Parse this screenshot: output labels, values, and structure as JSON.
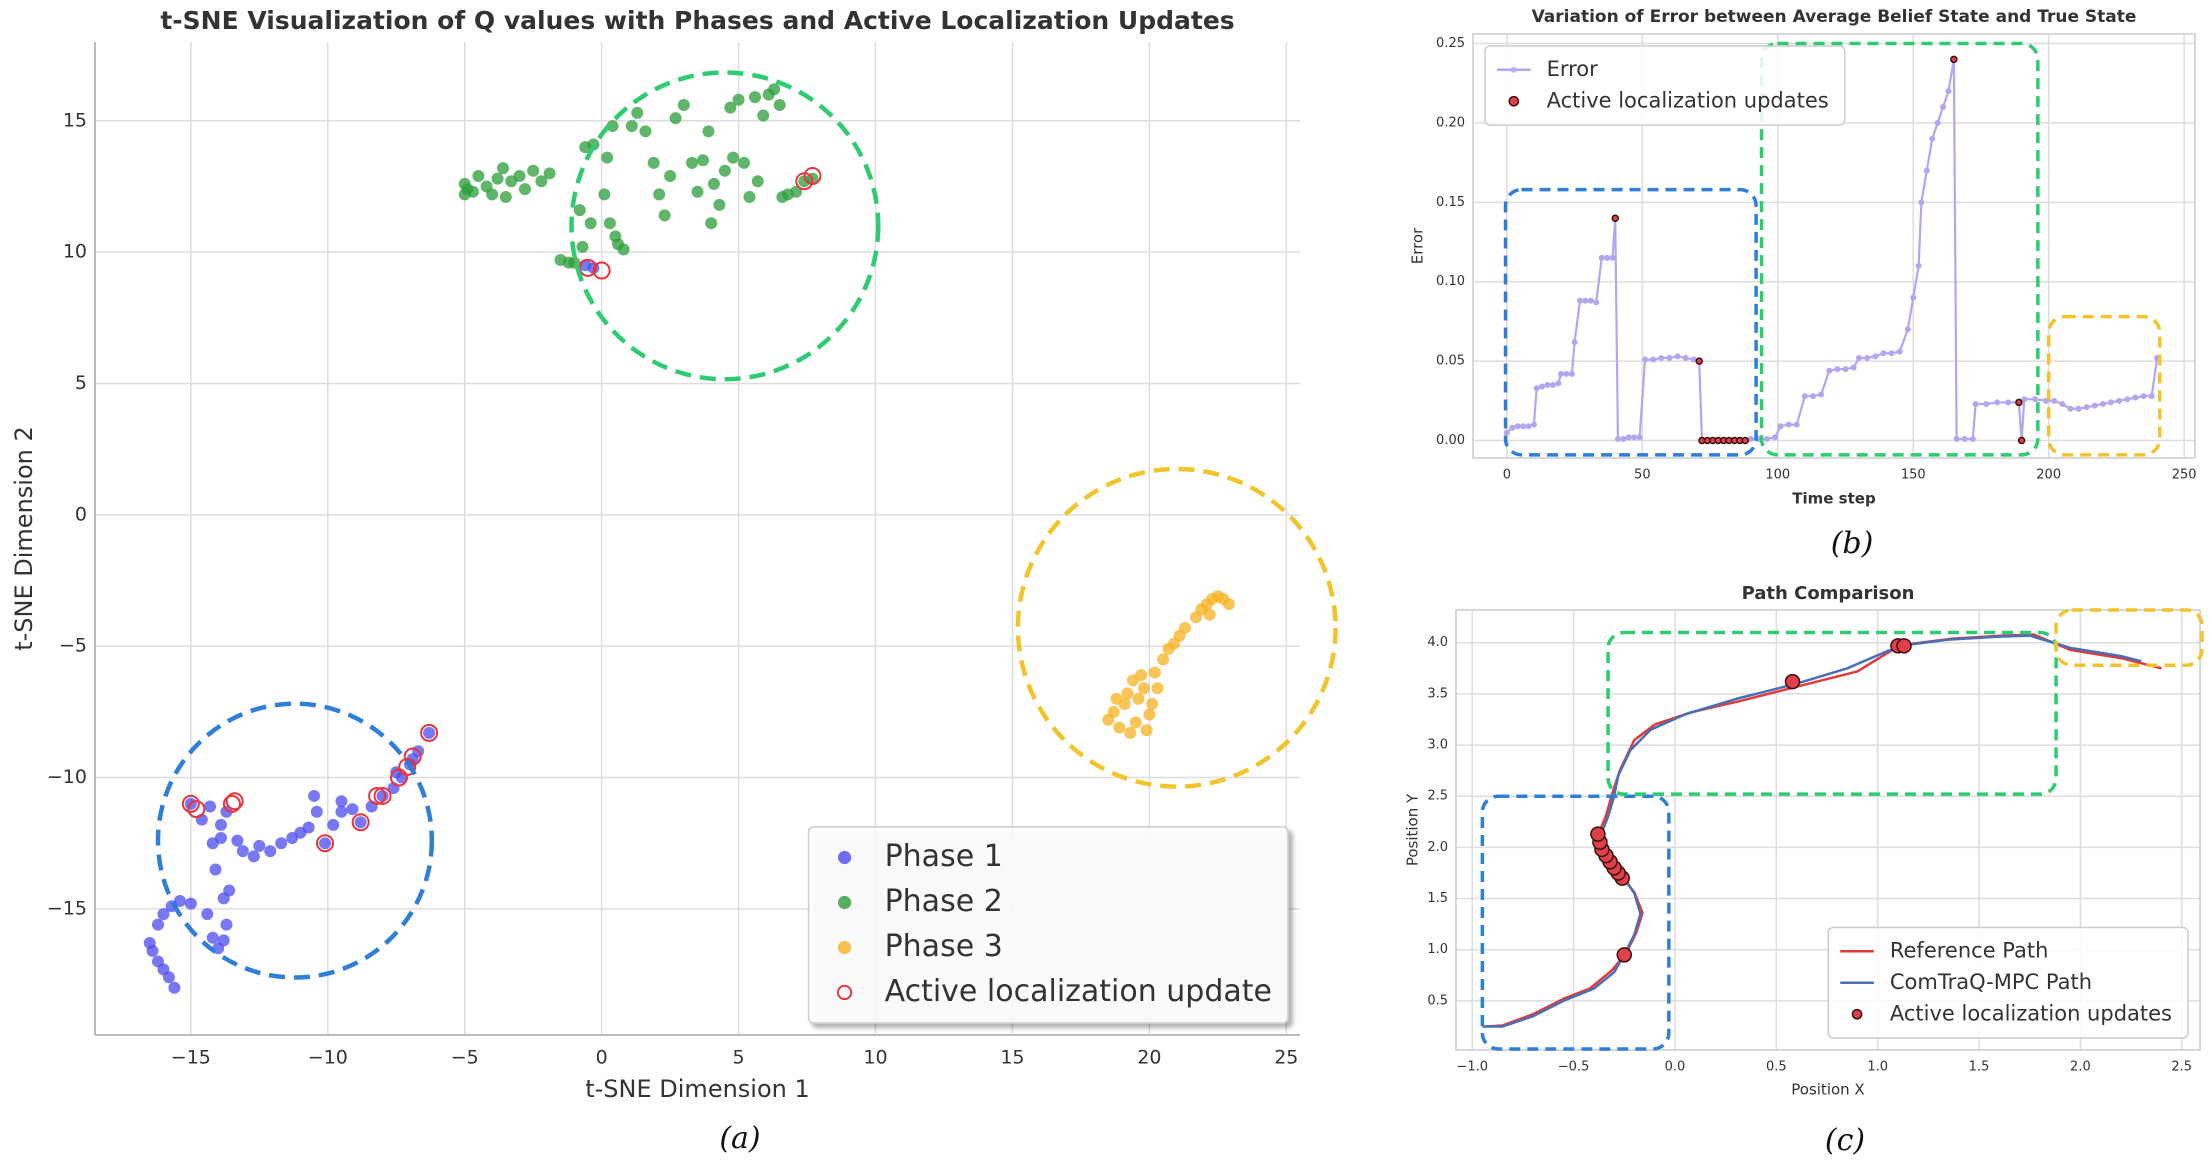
{
  "chart_data": [
    {
      "type": "scatter",
      "title": "t-SNE Visualization of Q values with Phases and Active Localization Updates",
      "x_label": "t-SNE Dimension 1",
      "y_label": "t-SNE Dimension 2",
      "caption": "(a)",
      "xlim": [
        -18.5,
        25.5
      ],
      "ylim": [
        -19.8,
        18
      ],
      "xticks": [
        {
          "value": -15,
          "label": "−15"
        },
        {
          "value": -10,
          "label": "−10"
        },
        {
          "value": -5,
          "label": "−5"
        },
        0,
        5,
        10,
        15,
        20,
        25
      ],
      "yticks": [
        {
          "value": -15,
          "label": "−15"
        },
        {
          "value": -10,
          "label": "−10"
        },
        {
          "value": -5,
          "label": "−5"
        },
        0,
        5,
        10,
        15
      ],
      "grid": true,
      "legend": "lower right",
      "series": [
        {
          "name": "Phase 1",
          "color": "#4b4bf0",
          "style": "markers",
          "x": [
            -16.5,
            -16.4,
            -16.2,
            -16,
            -15.8,
            -15.6,
            -16.2,
            -16,
            -15.7,
            -15.4,
            -15,
            -14.4,
            -14.2,
            -14,
            -13.8,
            -13.7,
            -13.6,
            -13.8,
            -14.1,
            -13.9,
            -14.2,
            -13.9,
            -13.7,
            -14.6,
            -15,
            -14.3,
            -13.1,
            -13.3,
            -12.7,
            -12.5,
            -12.1,
            -11.7,
            -11.3,
            -11,
            -10.7,
            -10.4,
            -10.1,
            -9.8,
            -9.5,
            -9.1,
            -8.8,
            -8.4,
            -8,
            -7.6,
            -7.3,
            -7,
            -6.7,
            -6.3,
            -10.5,
            -9.5,
            -7.5,
            -6.9,
            -0.6,
            -0.3
          ],
          "values": [
            -16.3,
            -16.6,
            -17,
            -17.3,
            -17.6,
            -18,
            -15.6,
            -15.2,
            -14.9,
            -14.7,
            -14.8,
            -15.2,
            -16.1,
            -16.5,
            -16.2,
            -15.6,
            -14.3,
            -14.6,
            -13.5,
            -12.3,
            -12.5,
            -11.8,
            -11.3,
            -11.6,
            -11,
            -11.1,
            -12.8,
            -12.4,
            -13,
            -12.6,
            -12.8,
            -12.5,
            -12.3,
            -12.1,
            -11.9,
            -11.3,
            -12.5,
            -11.8,
            -11.3,
            -11.2,
            -11.7,
            -11.1,
            -10.7,
            -10.4,
            -10,
            -9.5,
            -9,
            -8.3,
            -10.7,
            -10.9,
            -9.8,
            -9.3,
            9.5,
            9.4
          ]
        },
        {
          "name": "Phase 2",
          "color": "#2a9d3a",
          "style": "markers",
          "x": [
            -5,
            -5,
            -4.7,
            -4.5,
            -4.2,
            -4,
            -3.8,
            -3.6,
            -3.3,
            -3,
            -2.8,
            -2.5,
            -2.2,
            -1.9,
            -4.9,
            -3.5,
            -1.5,
            -1,
            -0.7,
            -0.4,
            -0.8,
            -0.6,
            -0.3,
            0.2,
            0.4,
            0.6,
            0.5,
            0.8,
            0.3,
            1.3,
            1.6,
            1.9,
            2.1,
            2.3,
            2.5,
            2.7,
            3,
            3.3,
            3.5,
            3.7,
            3.9,
            4.1,
            4.3,
            4.5,
            4.7,
            5,
            5.2,
            5.4,
            5.7,
            5.9,
            6.1,
            6.3,
            6.5,
            6.6,
            6.8,
            7.1,
            7.4,
            7.7,
            1.1,
            0.1,
            4.8,
            5.6,
            -1.2,
            4
          ],
          "values": [
            12.2,
            12.6,
            12.3,
            12.9,
            12.5,
            12.2,
            12.8,
            13.2,
            12.7,
            12.9,
            12.4,
            13.1,
            12.7,
            13,
            12.4,
            12.1,
            9.7,
            9.6,
            10.2,
            11.1,
            11.6,
            14,
            14.1,
            13.6,
            14.8,
            10.3,
            10.6,
            10.1,
            11.1,
            15.3,
            14.6,
            13.4,
            12.2,
            11.4,
            12.9,
            15.1,
            15.6,
            13.4,
            12.3,
            13.5,
            14.6,
            12.6,
            11.8,
            13.1,
            15.5,
            15.8,
            13.4,
            12.1,
            12.7,
            15.2,
            16,
            16.2,
            15.6,
            12.1,
            12.2,
            12.3,
            12.7,
            12.8,
            14.8,
            12.2,
            13.6,
            15.9,
            9.6,
            11.1
          ]
        },
        {
          "name": "Phase 3",
          "color": "#f5b21e",
          "style": "markers",
          "x": [
            18.5,
            18.7,
            18.9,
            19.1,
            19.3,
            19.5,
            19.2,
            19.6,
            19.8,
            20,
            19.4,
            19.7,
            20.1,
            20.3,
            20.2,
            20.5,
            20.7,
            20.9,
            21.1,
            21.3,
            21.9,
            22.1,
            22.3,
            22.5,
            22.7,
            22.9,
            22.2,
            18.8,
            19.9,
            21.7
          ],
          "values": [
            -7.8,
            -7.5,
            -8.1,
            -7.2,
            -8.3,
            -7.9,
            -6.8,
            -7,
            -6.6,
            -7.6,
            -6.3,
            -6.1,
            -7.2,
            -6.6,
            -6,
            -5.5,
            -5.1,
            -4.9,
            -4.6,
            -4.3,
            -3.6,
            -3.4,
            -3.2,
            -3.1,
            -3.2,
            -3.4,
            -3.8,
            -7,
            -8.2,
            -3.9
          ]
        },
        {
          "name": "Active localization update",
          "color": "none",
          "edgecolor": "#e8343e",
          "style": "markers",
          "x": [
            -15,
            -14.8,
            -13.5,
            -13.4,
            -10.1,
            -8.8,
            -8.2,
            -8,
            -7.4,
            -7.1,
            -6.9,
            -6.3,
            -0.5,
            0,
            7.4,
            7.7
          ],
          "values": [
            -11,
            -11.2,
            -11,
            -10.9,
            -12.5,
            -11.7,
            -10.7,
            -10.7,
            -10,
            -9.6,
            -9.2,
            -8.3,
            9.4,
            9.3,
            12.7,
            12.9
          ]
        }
      ]
    },
    {
      "type": "line",
      "title": "Variation of Error between Average Belief State and True State",
      "x_label": "Time step",
      "y_label": "Error",
      "caption": "(b)",
      "xlim": [
        -12.5,
        254
      ],
      "ylim": [
        -0.011,
        0.256
      ],
      "xticks": [
        0,
        50,
        100,
        150,
        200,
        250
      ],
      "yticks": [
        {
          "value": 0,
          "label": "0.00"
        },
        {
          "value": 0.05,
          "label": "0.05"
        },
        {
          "value": 0.1,
          "label": "0.10"
        },
        {
          "value": 0.15,
          "label": "0.15"
        },
        {
          "value": 0.2,
          "label": "0.20"
        },
        {
          "value": 0.25,
          "label": "0.25"
        }
      ],
      "grid": true,
      "legend": "upper left",
      "series": [
        {
          "name": "Error",
          "color": "#b3a6f0",
          "style": "line-markers",
          "x": [
            0,
            2,
            4,
            6,
            8,
            10,
            11,
            13,
            15,
            17,
            19,
            20,
            22,
            24,
            25,
            27,
            29,
            31,
            33,
            35,
            37,
            39,
            40,
            41,
            43,
            45,
            47,
            49,
            51,
            54,
            57,
            60,
            63,
            66,
            69,
            71,
            72,
            74,
            76,
            78,
            80,
            82,
            84,
            86,
            88,
            90,
            93,
            96,
            99,
            101,
            104,
            107,
            110,
            113,
            116,
            119,
            122,
            125,
            128,
            130,
            133,
            136,
            139,
            142,
            145,
            148,
            150,
            152,
            153,
            155,
            157,
            159,
            161,
            163,
            165,
            166,
            169,
            172,
            173,
            177,
            181,
            185,
            189,
            190,
            191,
            195,
            199,
            202,
            205,
            208,
            211,
            214,
            217,
            220,
            223,
            226,
            229,
            232,
            235,
            238,
            240
          ],
          "values": [
            0.005,
            0.008,
            0.009,
            0.009,
            0.009,
            0.01,
            0.033,
            0.034,
            0.035,
            0.035,
            0.036,
            0.042,
            0.042,
            0.042,
            0.062,
            0.088,
            0.088,
            0.088,
            0.087,
            0.115,
            0.115,
            0.115,
            0.14,
            0.001,
            0.001,
            0.002,
            0.002,
            0.002,
            0.051,
            0.051,
            0.052,
            0.052,
            0.053,
            0.052,
            0.051,
            0.05,
            0,
            0,
            0,
            0,
            0,
            0,
            0,
            0,
            0,
            0.001,
            0.001,
            0.001,
            0.002,
            0.009,
            0.01,
            0.01,
            0.028,
            0.028,
            0.029,
            0.044,
            0.045,
            0.045,
            0.046,
            0.052,
            0.052,
            0.053,
            0.055,
            0.055,
            0.056,
            0.07,
            0.09,
            0.11,
            0.15,
            0.17,
            0.19,
            0.2,
            0.21,
            0.22,
            0.24,
            0.001,
            0.001,
            0.001,
            0.023,
            0.023,
            0.024,
            0.024,
            0.024,
            0,
            0.026,
            0.026,
            0.025,
            0.025,
            0.023,
            0.02,
            0.02,
            0.021,
            0.022,
            0.023,
            0.024,
            0.025,
            0.026,
            0.027,
            0.028,
            0.028,
            0.052
          ]
        },
        {
          "name": "Active localization updates",
          "color": "#e0404a",
          "edgecolor": "#3a1010",
          "style": "markers",
          "x": [
            40,
            71,
            72,
            74,
            76,
            78,
            80,
            82,
            84,
            86,
            88,
            165,
            189,
            190
          ],
          "values": [
            0.14,
            0.05,
            0,
            0,
            0,
            0,
            0,
            0,
            0,
            0,
            0,
            0.24,
            0.024,
            0
          ]
        }
      ]
    },
    {
      "type": "line",
      "title": "Path Comparison",
      "x_label": "Position X",
      "y_label": "Position Y",
      "caption": "(c)",
      "xlim": [
        -1.08,
        2.59
      ],
      "ylim": [
        0.02,
        4.32
      ],
      "xticks": [
        {
          "value": -1,
          "label": "−1.0"
        },
        {
          "value": -0.5,
          "label": "−0.5"
        },
        {
          "value": 0,
          "label": "0.0"
        },
        0.5,
        {
          "value": 1,
          "label": "1.0"
        },
        1.5,
        {
          "value": 2,
          "label": "2.0"
        },
        2.5
      ],
      "yticks": [
        0.5,
        {
          "value": 1,
          "label": "1.0"
        },
        1.5,
        {
          "value": 2,
          "label": "2.0"
        },
        2.5,
        {
          "value": 3,
          "label": "3.0"
        },
        3.5,
        {
          "value": 4,
          "label": "4.0"
        }
      ],
      "grid": true,
      "legend": "lower right",
      "series": [
        {
          "name": "Reference Path",
          "color": "#e03a3a",
          "style": "line",
          "x": [
            -0.93,
            -0.85,
            -0.7,
            -0.55,
            -0.42,
            -0.31,
            -0.24,
            -0.19,
            -0.16,
            -0.2,
            -0.26,
            -0.31,
            -0.36,
            -0.38,
            -0.34,
            -0.31,
            -0.27,
            -0.2,
            -0.1,
            0.08,
            0.32,
            0.62,
            0.9,
            1.08,
            1.17,
            1.37,
            1.62,
            1.77,
            1.95,
            2.2,
            2.4
          ],
          "values": [
            0.25,
            0.26,
            0.37,
            0.52,
            0.62,
            0.8,
            0.97,
            1.17,
            1.36,
            1.56,
            1.71,
            1.82,
            1.96,
            2.12,
            2.31,
            2.52,
            2.76,
            3.05,
            3.2,
            3.32,
            3.43,
            3.58,
            3.72,
            3.94,
            3.99,
            4.04,
            4.07,
            4.08,
            3.93,
            3.85,
            3.75
          ]
        },
        {
          "name": "ComTraQ-MPC Path",
          "color": "#4a6fb5",
          "style": "line",
          "x": [
            -0.95,
            -0.85,
            -0.7,
            -0.55,
            -0.4,
            -0.3,
            -0.25,
            -0.2,
            -0.17,
            -0.2,
            -0.25,
            -0.3,
            -0.35,
            -0.37,
            -0.33,
            -0.3,
            -0.28,
            -0.22,
            -0.12,
            0.05,
            0.3,
            0.6,
            0.85,
            1.05,
            1.15,
            1.35,
            1.6,
            1.75,
            1.95,
            2.2,
            2.3
          ],
          "values": [
            0.25,
            0.25,
            0.35,
            0.5,
            0.62,
            0.78,
            0.95,
            1.15,
            1.35,
            1.55,
            1.7,
            1.82,
            1.95,
            2.1,
            2.3,
            2.5,
            2.7,
            2.95,
            3.15,
            3.3,
            3.45,
            3.6,
            3.75,
            3.92,
            3.98,
            4.03,
            4.06,
            4.07,
            3.95,
            3.87,
            3.82
          ]
        },
        {
          "name": "Active localization updates",
          "color": "#e0404a",
          "edgecolor": "#3a1010",
          "style": "markers",
          "x": [
            -0.25,
            -0.26,
            -0.28,
            -0.3,
            -0.32,
            -0.34,
            -0.36,
            -0.37,
            -0.38,
            0.58,
            1.1,
            1.13
          ],
          "values": [
            0.95,
            1.7,
            1.75,
            1.8,
            1.86,
            1.92,
            1.98,
            2.05,
            2.13,
            3.62,
            3.97,
            3.97
          ]
        }
      ]
    }
  ]
}
